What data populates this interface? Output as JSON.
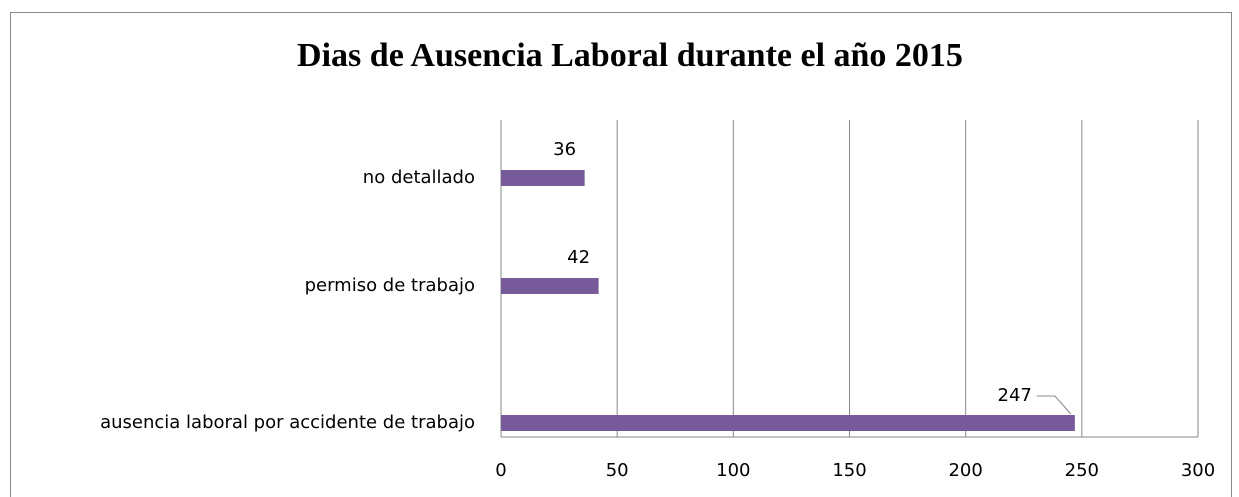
{
  "chart_data": {
    "type": "bar",
    "orientation": "horizontal",
    "title": "Dias de Ausencia Laboral  durante el año 2015",
    "categories": [
      "no detallado",
      "permiso de trabajo",
      "ausencia laboral por accidente de trabajo"
    ],
    "values": [
      36,
      42,
      247
    ],
    "color": "#775a99",
    "xlim": [
      0,
      300
    ],
    "xticks": [
      0,
      50,
      100,
      150,
      200,
      250,
      300
    ],
    "grid": true
  }
}
